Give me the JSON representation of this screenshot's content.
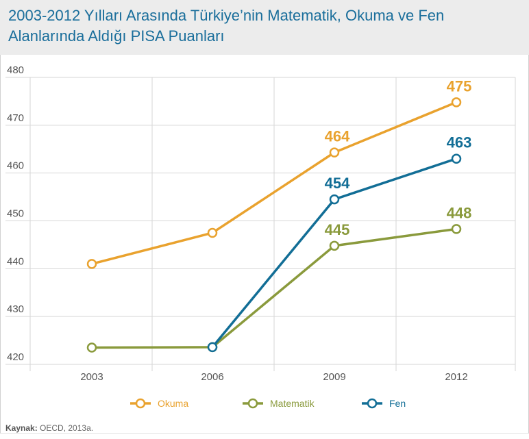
{
  "title": "2003-2012 Yılları Arasında Türkiye’nin Matematik, Okuma ve Fen Alanlarında Aldığı PISA Puanları",
  "source": {
    "label": "Kaynak:",
    "text": "OECD, 2013a."
  },
  "colors": {
    "Okuma": "#e9a22e",
    "Matematik": "#8a9a3c",
    "Fen": "#126e96",
    "grid": "#d6d6d6",
    "tick": "#555555"
  },
  "chart_data": {
    "type": "line",
    "title": "2003-2012 Yılları Arasında Türkiye’nin Matematik, Okuma ve Fen Alanlarında Aldığı PISA Puanları",
    "xlabel": "",
    "ylabel": "",
    "x": [
      "2003",
      "2006",
      "2009",
      "2012"
    ],
    "ylim": [
      420,
      480
    ],
    "yticks": [
      420,
      430,
      440,
      450,
      460,
      470,
      480
    ],
    "grid": true,
    "legend": "bottom",
    "series": [
      {
        "name": "Okuma",
        "values": [
          441,
          447.5,
          464.3,
          474.8
        ],
        "labels": [
          null,
          null,
          "464",
          "475"
        ]
      },
      {
        "name": "Matematik",
        "values": [
          423.5,
          423.6,
          444.8,
          448.3
        ],
        "labels": [
          null,
          null,
          "445",
          "448"
        ]
      },
      {
        "name": "Fen",
        "values": [
          null,
          423.6,
          454.5,
          463
        ],
        "labels": [
          null,
          null,
          "454",
          "463"
        ]
      }
    ]
  }
}
